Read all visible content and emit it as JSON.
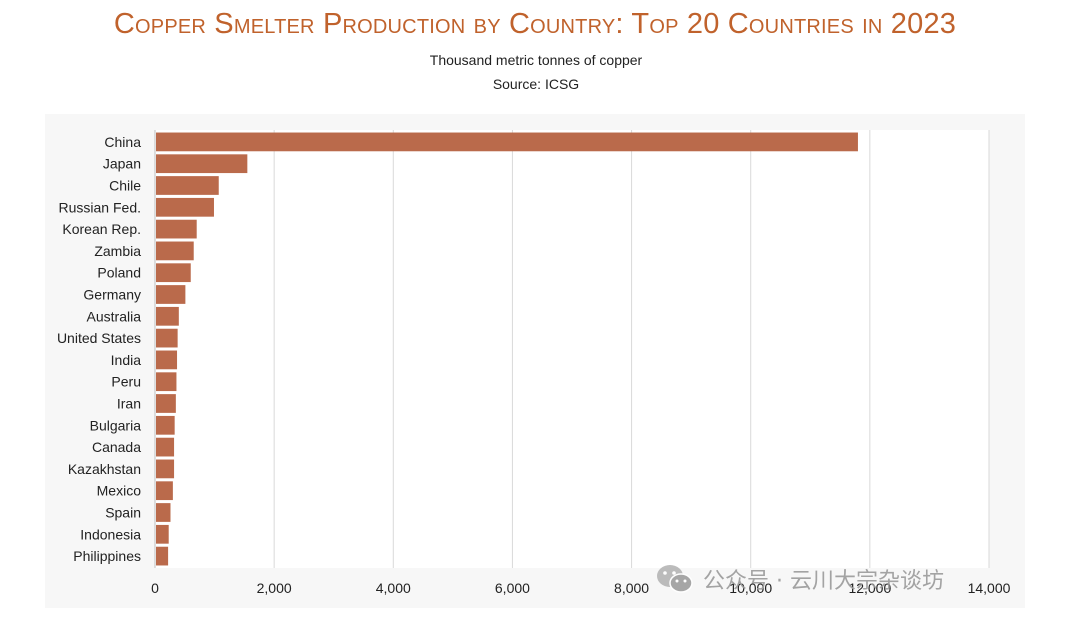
{
  "header": {
    "title": "Copper Smelter Production by Country: Top 20 Countries in 2023",
    "subtitle": "Thousand metric tonnes of copper",
    "source": "Source: ICSG"
  },
  "watermark": {
    "text": "公众号 · 云川大宗杂谈坊",
    "icon": "wechat-icon"
  },
  "colors": {
    "bar": "#BA6A4B",
    "title": "#C0622C",
    "grid": "#D9D9D9"
  },
  "chart_data": {
    "type": "bar",
    "orientation": "horizontal",
    "title": "Copper Smelter Production by Country: Top 20 Countries in 2023",
    "subtitle": "Thousand metric tonnes of copper",
    "source": "Source: ICSG",
    "categories": [
      "China",
      "Japan",
      "Chile",
      "Russian Fed.",
      "Korean Rep.",
      "Zambia",
      "Poland",
      "Germany",
      "Australia",
      "United States",
      "India",
      "Peru",
      "Iran",
      "Bulgaria",
      "Canada",
      "Kazakhstan",
      "Mexico",
      "Spain",
      "Indonesia",
      "Philippines"
    ],
    "values": [
      11800,
      1550,
      1070,
      990,
      700,
      650,
      600,
      510,
      400,
      380,
      370,
      360,
      350,
      330,
      320,
      320,
      300,
      260,
      230,
      220
    ],
    "xlim": [
      0,
      14000
    ],
    "xticks": [
      0,
      2000,
      4000,
      6000,
      8000,
      10000,
      12000,
      14000
    ],
    "xtick_labels": [
      "0",
      "2,000",
      "4,000",
      "6,000",
      "8,000",
      "10,000",
      "12,000",
      "14,000"
    ],
    "grid": true,
    "legend": "none"
  }
}
